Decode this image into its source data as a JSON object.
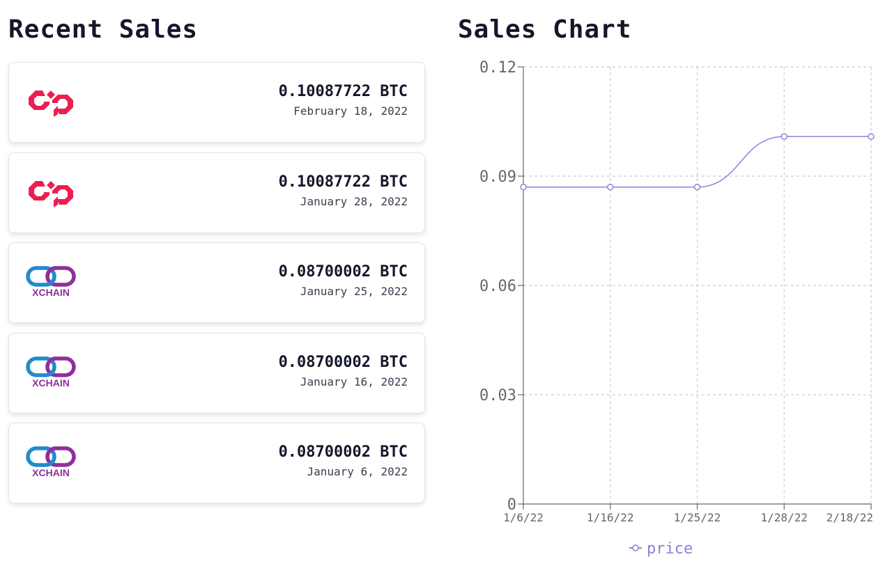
{
  "recent_sales": {
    "title": "Recent Sales",
    "items": [
      {
        "logo": "counterparty-logo",
        "price": "0.10087722 BTC",
        "date": "February 18, 2022"
      },
      {
        "logo": "counterparty-logo",
        "price": "0.10087722 BTC",
        "date": "January 28, 2022"
      },
      {
        "logo": "xchain-logo",
        "logo_text": "XCHAIN",
        "price": "0.08700002 BTC",
        "date": "January 25, 2022"
      },
      {
        "logo": "xchain-logo",
        "logo_text": "XCHAIN",
        "price": "0.08700002 BTC",
        "date": "January 16, 2022"
      },
      {
        "logo": "xchain-logo",
        "logo_text": "XCHAIN",
        "price": "0.08700002 BTC",
        "date": "January 6, 2022"
      }
    ]
  },
  "colors": {
    "counterparty": "#ec1e50",
    "xchain_blue": "#1f8bd0",
    "xchain_purple": "#8f2e9c",
    "series": "#8884d8"
  },
  "chart_data": {
    "type": "line",
    "title": "Sales Chart",
    "categories": [
      "1/6/22",
      "1/16/22",
      "1/25/22",
      "1/28/22",
      "2/18/22"
    ],
    "series": [
      {
        "name": "price",
        "values": [
          0.08700002,
          0.08700002,
          0.08700002,
          0.10087722,
          0.10087722
        ]
      }
    ],
    "y_ticks": [
      "0",
      "0.03",
      "0.06",
      "0.09",
      "0.12"
    ],
    "ylim": [
      0,
      0.12
    ],
    "grid": true,
    "legend": "bottom-center"
  }
}
